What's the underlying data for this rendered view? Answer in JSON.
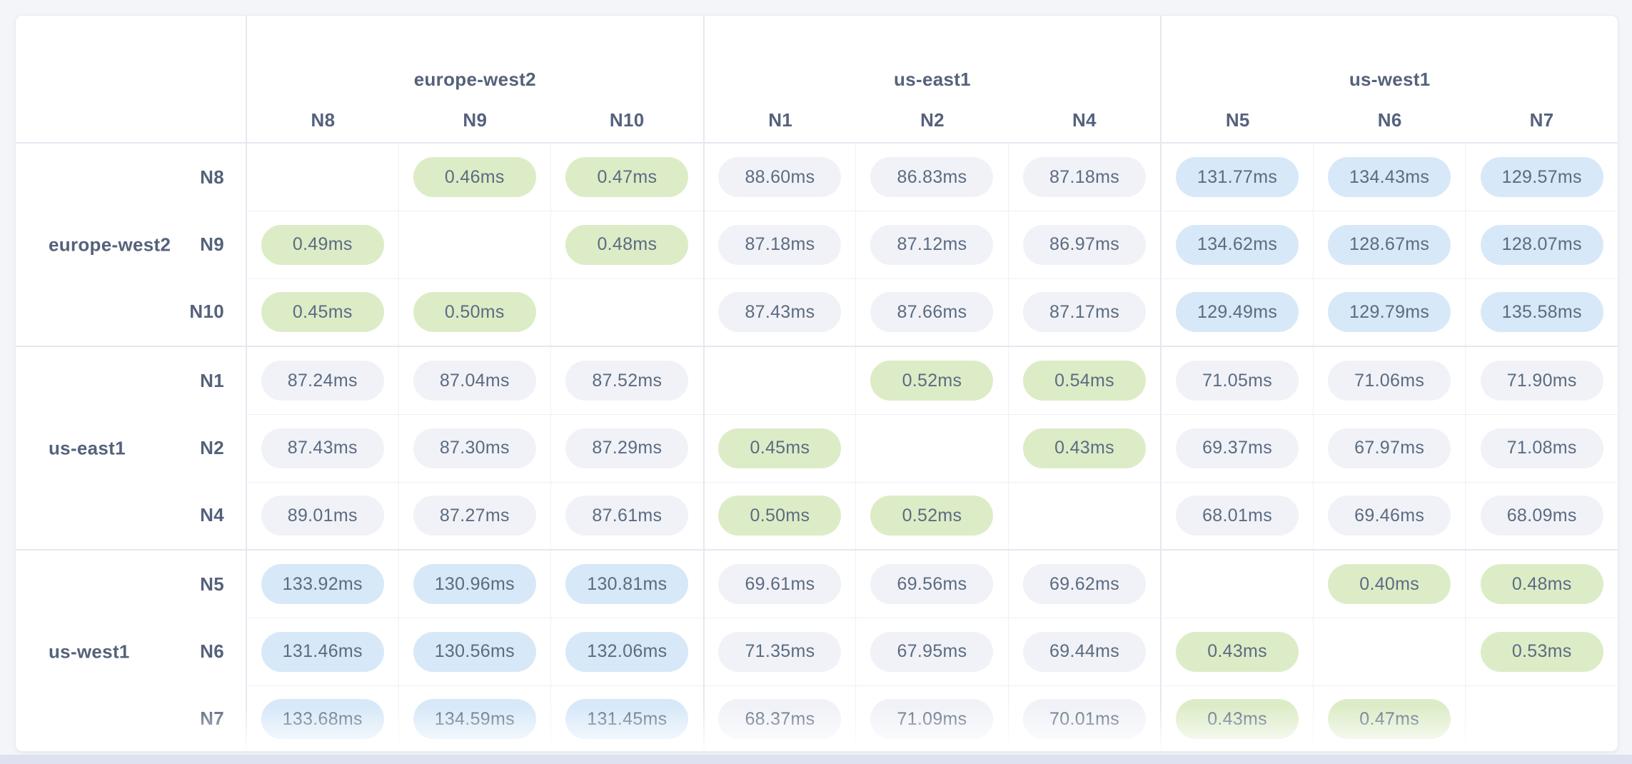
{
  "page": {
    "background_color": "#f3f5f9",
    "bottom_strip_color": "#dde2ee"
  },
  "chart_data": {
    "type": "heatmap",
    "unit": "ms",
    "value_format": "two_decimals_with_ms_suffix",
    "legend_position": "none",
    "grid": true,
    "region_groups": [
      {
        "region": "europe-west2",
        "nodes": [
          "N8",
          "N9",
          "N10"
        ]
      },
      {
        "region": "us-east1",
        "nodes": [
          "N1",
          "N2",
          "N4"
        ]
      },
      {
        "region": "us-west1",
        "nodes": [
          "N5",
          "N6",
          "N7"
        ]
      }
    ],
    "rows": [
      "N8",
      "N9",
      "N10",
      "N1",
      "N2",
      "N4",
      "N5",
      "N6",
      "N7"
    ],
    "columns": [
      "N8",
      "N9",
      "N10",
      "N1",
      "N2",
      "N4",
      "N5",
      "N6",
      "N7"
    ],
    "values": [
      [
        null,
        0.46,
        0.47,
        88.6,
        86.83,
        87.18,
        131.77,
        134.43,
        129.57
      ],
      [
        0.49,
        null,
        0.48,
        87.18,
        87.12,
        86.97,
        134.62,
        128.67,
        128.07
      ],
      [
        0.45,
        0.5,
        null,
        87.43,
        87.66,
        87.17,
        129.49,
        129.79,
        135.58
      ],
      [
        87.24,
        87.04,
        87.52,
        null,
        0.52,
        0.54,
        71.05,
        71.06,
        71.9
      ],
      [
        87.43,
        87.3,
        87.29,
        0.45,
        null,
        0.43,
        69.37,
        67.97,
        71.08
      ],
      [
        89.01,
        87.27,
        87.61,
        0.5,
        0.52,
        null,
        68.01,
        69.46,
        68.09
      ],
      [
        133.92,
        130.96,
        130.81,
        69.61,
        69.56,
        69.62,
        null,
        0.4,
        0.48
      ],
      [
        131.46,
        130.56,
        132.06,
        71.35,
        67.95,
        69.44,
        0.43,
        null,
        0.53
      ],
      [
        133.68,
        134.59,
        131.45,
        68.37,
        71.09,
        70.01,
        0.43,
        0.47,
        null
      ]
    ],
    "color_thresholds": {
      "low_under_ms": 1,
      "high_over_ms": 100
    },
    "colors": {
      "low": "#dcecc7",
      "mid": "#f0f2f7",
      "high": "#d7e8f8",
      "value_text": "#5c6b81",
      "label_text": "#55627b"
    }
  }
}
